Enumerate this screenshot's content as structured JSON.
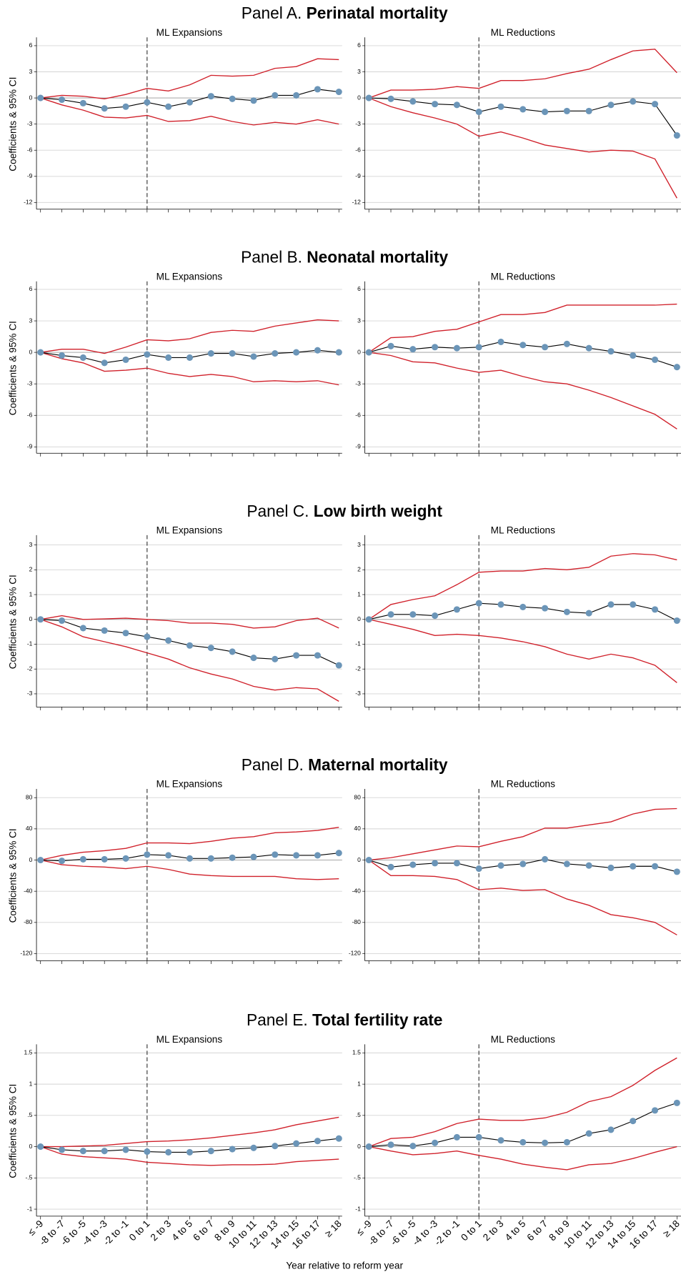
{
  "chart_data": {
    "type": "line",
    "xlabel": "Year relative to reform year",
    "ylabel": "Coefficients & 95% CI",
    "categories": [
      "≤ -9",
      "-8 to -7",
      "-6 to -5",
      "-4 to -3",
      "-2 to -1",
      "0 to 1",
      "2 to 3",
      "4 to 5",
      "6 to 7",
      "8 to 9",
      "10 to 11",
      "12 to 13",
      "14 to 15",
      "16 to 17",
      "≥ 18"
    ],
    "vline": "0 to 1",
    "grid": true,
    "ci_color": "#d0202a",
    "coef_color": "#000000",
    "marker_color": "#6b95b8",
    "panels": [
      {
        "panel": "Panel A.",
        "title": "Perinatal mortality",
        "ylim": [
          -12.4,
          6.4
        ],
        "yticks": [
          6,
          3,
          0,
          -3,
          -6,
          -9,
          -12
        ],
        "subplots": [
          {
            "subtitle": "ML Expansions",
            "coef": [
              0,
              -0.2,
              -0.6,
              -1.2,
              -1.0,
              -0.5,
              -1.0,
              -0.5,
              0.2,
              -0.1,
              -0.3,
              0.3,
              0.3,
              1.0,
              0.7
            ],
            "ci_high": [
              0,
              0.3,
              0.2,
              -0.1,
              0.4,
              1.1,
              0.8,
              1.5,
              2.6,
              2.5,
              2.6,
              3.4,
              3.6,
              4.5,
              4.4
            ],
            "ci_low": [
              0,
              -0.8,
              -1.4,
              -2.2,
              -2.3,
              -2.0,
              -2.7,
              -2.6,
              -2.1,
              -2.7,
              -3.1,
              -2.8,
              -3.0,
              -2.5,
              -3.0
            ]
          },
          {
            "subtitle": "ML Reductions",
            "coef": [
              0,
              -0.1,
              -0.4,
              -0.7,
              -0.8,
              -1.6,
              -1.0,
              -1.3,
              -1.6,
              -1.5,
              -1.5,
              -0.8,
              -0.4,
              -0.7,
              -4.3
            ],
            "ci_high": [
              0,
              0.9,
              0.9,
              1.0,
              1.3,
              1.1,
              2.0,
              2.0,
              2.2,
              2.8,
              3.3,
              4.4,
              5.4,
              5.6,
              2.9
            ],
            "ci_low": [
              0,
              -1.0,
              -1.7,
              -2.3,
              -3.0,
              -4.4,
              -3.9,
              -4.6,
              -5.4,
              -5.8,
              -6.2,
              -6.0,
              -6.1,
              -7.0,
              -11.5
            ]
          }
        ]
      },
      {
        "panel": "Panel B.",
        "title": "Neonatal mortality",
        "ylim": [
          -9.3,
          6.3
        ],
        "yticks": [
          6,
          3,
          0,
          -3,
          -6,
          -9
        ],
        "subplots": [
          {
            "subtitle": "ML Expansions",
            "coef": [
              0,
              -0.3,
              -0.5,
              -1.0,
              -0.7,
              -0.2,
              -0.5,
              -0.5,
              -0.1,
              -0.1,
              -0.4,
              -0.1,
              0,
              0.2,
              0
            ],
            "ci_high": [
              0,
              0.3,
              0.3,
              -0.1,
              0.5,
              1.2,
              1.1,
              1.3,
              1.9,
              2.1,
              2.0,
              2.5,
              2.8,
              3.1,
              3.0
            ],
            "ci_low": [
              0,
              -0.6,
              -1.0,
              -1.8,
              -1.7,
              -1.5,
              -2.0,
              -2.3,
              -2.1,
              -2.3,
              -2.8,
              -2.7,
              -2.8,
              -2.7,
              -3.1
            ]
          },
          {
            "subtitle": "ML Reductions",
            "coef": [
              0,
              0.6,
              0.3,
              0.5,
              0.4,
              0.5,
              1.0,
              0.7,
              0.5,
              0.8,
              0.4,
              0.1,
              -0.3,
              -0.7,
              -1.4
            ],
            "ci_high": [
              0,
              1.4,
              1.5,
              2.0,
              2.2,
              2.9,
              3.6,
              3.6,
              3.8,
              4.5,
              4.5,
              4.5,
              4.5,
              4.5,
              4.6
            ],
            "ci_low": [
              0,
              -0.3,
              -0.9,
              -1.0,
              -1.5,
              -1.9,
              -1.7,
              -2.3,
              -2.8,
              -3.0,
              -3.6,
              -4.3,
              -5.1,
              -5.9,
              -7.3
            ]
          }
        ]
      },
      {
        "panel": "Panel C.",
        "title": "Low birth weight",
        "ylim": [
          -3.4,
          3.2
        ],
        "yticks": [
          3,
          2,
          1,
          0,
          -1,
          -2,
          -3
        ],
        "subplots": [
          {
            "subtitle": "ML Expansions",
            "coef": [
              0,
              -0.05,
              -0.35,
              -0.45,
              -0.55,
              -0.7,
              -0.85,
              -1.05,
              -1.15,
              -1.3,
              -1.55,
              -1.6,
              -1.45,
              -1.45,
              -1.85
            ],
            "ci_high": [
              0,
              0.15,
              0,
              0.02,
              0.05,
              0,
              -0.05,
              -0.15,
              -0.15,
              -0.2,
              -0.35,
              -0.3,
              -0.05,
              0.05,
              -0.35
            ],
            "ci_low": [
              0,
              -0.3,
              -0.7,
              -0.9,
              -1.1,
              -1.35,
              -1.6,
              -1.95,
              -2.2,
              -2.4,
              -2.7,
              -2.85,
              -2.75,
              -2.8,
              -3.3
            ]
          },
          {
            "subtitle": "ML Reductions",
            "coef": [
              0,
              0.2,
              0.2,
              0.15,
              0.4,
              0.65,
              0.6,
              0.5,
              0.45,
              0.3,
              0.25,
              0.6,
              0.6,
              0.4,
              -0.05
            ],
            "ci_high": [
              0,
              0.6,
              0.8,
              0.95,
              1.4,
              1.9,
              1.95,
              1.95,
              2.05,
              2.0,
              2.1,
              2.55,
              2.65,
              2.6,
              2.4
            ],
            "ci_low": [
              0,
              -0.2,
              -0.4,
              -0.65,
              -0.6,
              -0.65,
              -0.75,
              -0.9,
              -1.1,
              -1.4,
              -1.6,
              -1.4,
              -1.55,
              -1.85,
              -2.55
            ]
          }
        ]
      },
      {
        "panel": "Panel D.",
        "title": "Maternal mortality",
        "ylim": [
          -125,
          85
        ],
        "yticks": [
          80,
          40,
          0,
          -40,
          -80,
          -120
        ],
        "subplots": [
          {
            "subtitle": "ML Expansions",
            "coef": [
              0,
              -1,
              1,
              1,
              2,
              7,
              6,
              2,
              2,
              3,
              4,
              7,
              6,
              6,
              9
            ],
            "ci_high": [
              0,
              6,
              10,
              12,
              15,
              22,
              22,
              21,
              24,
              28,
              30,
              35,
              36,
              38,
              42
            ],
            "ci_low": [
              0,
              -6,
              -8,
              -9,
              -11,
              -8,
              -12,
              -18,
              -20,
              -21,
              -21,
              -21,
              -24,
              -25,
              -24
            ]
          },
          {
            "subtitle": "ML Reductions",
            "coef": [
              0,
              -9,
              -6,
              -4,
              -4,
              -11,
              -7,
              -5,
              1,
              -5,
              -7,
              -10,
              -8,
              -8,
              -15
            ],
            "ci_high": [
              0,
              3,
              8,
              13,
              18,
              17,
              24,
              30,
              41,
              41,
              45,
              49,
              59,
              65,
              66
            ],
            "ci_low": [
              0,
              -20,
              -20,
              -21,
              -25,
              -38,
              -36,
              -39,
              -38,
              -50,
              -58,
              -70,
              -74,
              -80,
              -96
            ]
          }
        ]
      },
      {
        "panel": "Panel E.",
        "title": "Total fertility rate",
        "ylim": [
          -1.06,
          1.56
        ],
        "yticks": [
          1.5,
          1,
          {
            "value": 0.5,
            "label": ".5"
          },
          0,
          {
            "value": -0.5,
            "label": "-.5"
          },
          -1
        ],
        "subplots": [
          {
            "subtitle": "ML Expansions",
            "coef": [
              0,
              -0.05,
              -0.07,
              -0.07,
              -0.05,
              -0.08,
              -0.09,
              -0.09,
              -0.07,
              -0.04,
              -0.02,
              0.01,
              0.05,
              0.09,
              0.13
            ],
            "ci_high": [
              0,
              0,
              0.01,
              0.02,
              0.05,
              0.08,
              0.09,
              0.11,
              0.14,
              0.18,
              0.22,
              0.27,
              0.35,
              0.41,
              0.47
            ],
            "ci_low": [
              0,
              -0.12,
              -0.16,
              -0.18,
              -0.2,
              -0.25,
              -0.27,
              -0.29,
              -0.3,
              -0.29,
              -0.29,
              -0.28,
              -0.24,
              -0.22,
              -0.2
            ]
          },
          {
            "subtitle": "ML Reductions",
            "coef": [
              0,
              0.03,
              0.01,
              0.06,
              0.15,
              0.15,
              0.1,
              0.07,
              0.06,
              0.07,
              0.21,
              0.27,
              0.41,
              0.58,
              0.7
            ],
            "ci_high": [
              0,
              0.13,
              0.15,
              0.24,
              0.37,
              0.44,
              0.42,
              0.42,
              0.46,
              0.55,
              0.72,
              0.8,
              0.98,
              1.22,
              1.42
            ],
            "ci_low": [
              0,
              -0.07,
              -0.13,
              -0.11,
              -0.07,
              -0.14,
              -0.2,
              -0.28,
              -0.33,
              -0.37,
              -0.29,
              -0.27,
              -0.19,
              -0.09,
              0
            ]
          }
        ]
      }
    ]
  }
}
